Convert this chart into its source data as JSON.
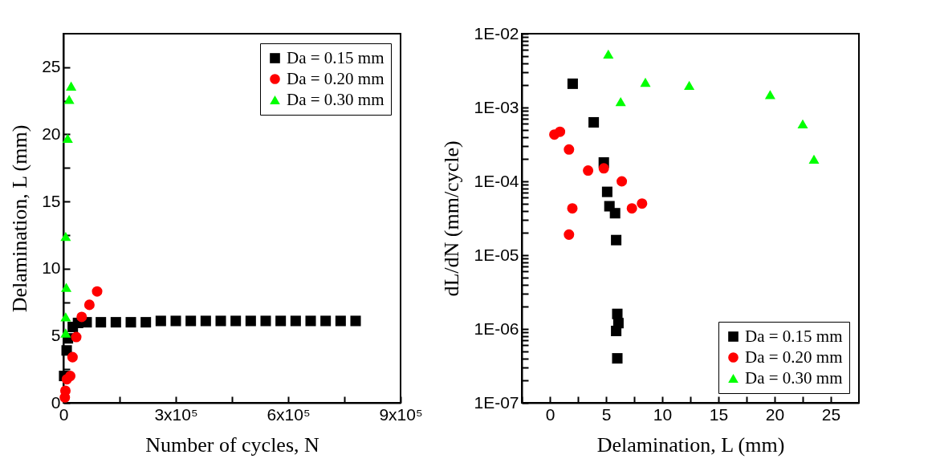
{
  "chart_data": [
    {
      "type": "scatter",
      "xlabel": "Number of cycles, N",
      "ylabel": "Delamination, L (mm)",
      "xlim": [
        0,
        900000
      ],
      "ylim": [
        0,
        27.5
      ],
      "xticks": [
        0,
        {
          "value": 150000,
          "label": null
        },
        {
          "value": 300000,
          "label": "3x10⁵"
        },
        {
          "value": 450000,
          "label": null
        },
        {
          "value": 600000,
          "label": "6x10⁵"
        },
        {
          "value": 750000,
          "label": null
        },
        {
          "value": 900000,
          "label": "9x10⁵"
        }
      ],
      "yticks": [
        0,
        {
          "value": 2.5,
          "label": null
        },
        5,
        {
          "value": 7.5,
          "label": null
        },
        10,
        {
          "value": 12.5,
          "label": null
        },
        15,
        {
          "value": 17.5,
          "label": null
        },
        20,
        {
          "value": 22.5,
          "label": null
        },
        25
      ],
      "legend": "top right",
      "grid": false,
      "series": [
        {
          "name": "Da = 0.15 mm",
          "color": "#000000",
          "marker": "square",
          "x": [
            2000,
            8700,
            12000,
            25000,
            39000,
            62000,
            100000,
            140000,
            180000,
            220000,
            260000,
            300000,
            340000,
            380000,
            420000,
            460000,
            500000,
            540000,
            580000,
            620000,
            660000,
            700000,
            740000,
            780000
          ],
          "values": [
            2.0,
            3.9,
            4.8,
            5.65,
            5.95,
            6.0,
            6.0,
            6.0,
            6.0,
            6.0,
            6.1,
            6.1,
            6.1,
            6.1,
            6.1,
            6.1,
            6.1,
            6.1,
            6.1,
            6.1,
            6.1,
            6.1,
            6.1,
            6.1
          ]
        },
        {
          "name": "Da = 0.20 mm",
          "color": "#ff0000",
          "marker": "circle",
          "x": [
            3800,
            5300,
            9200,
            18300,
            24400,
            34300,
            48800,
            69400,
            90000
          ],
          "values": [
            0.4,
            0.9,
            1.75,
            2.0,
            3.4,
            4.9,
            6.4,
            7.3,
            8.3
          ]
        },
        {
          "name": "Da = 0.30 mm",
          "color": "#00ff00",
          "marker": "triangle",
          "x": [
            6100,
            6100,
            7600,
            6100,
            11400,
            15300,
            20600
          ],
          "values": [
            5.2,
            6.4,
            8.6,
            12.4,
            19.7,
            22.6,
            23.6
          ]
        }
      ]
    },
    {
      "type": "scatter",
      "xlabel": "Delamination, L (mm)",
      "ylabel": "dL/dN (mm/cycle)",
      "log": "y",
      "xlim": [
        -2.5,
        27.5
      ],
      "ylim": [
        1e-07,
        0.01
      ],
      "xticks": [
        {
          "value": -2.5,
          "label": null
        },
        0,
        {
          "value": 2.5,
          "label": null
        },
        5,
        {
          "value": 7.5,
          "label": null
        },
        10,
        {
          "value": 12.5,
          "label": null
        },
        15,
        {
          "value": 17.5,
          "label": null
        },
        20,
        {
          "value": 22.5,
          "label": null
        },
        25
      ],
      "yticks": [
        {
          "value": 1e-07,
          "label": "1E-07"
        },
        {
          "value": 2e-07,
          "label": null
        },
        {
          "value": 3e-07,
          "label": null
        },
        {
          "value": 4e-07,
          "label": null
        },
        {
          "value": 5e-07,
          "label": null
        },
        {
          "value": 6e-07,
          "label": null
        },
        {
          "value": 7e-07,
          "label": null
        },
        {
          "value": 8e-07,
          "label": null
        },
        {
          "value": 9e-07,
          "label": null
        },
        {
          "value": 1e-06,
          "label": "1E-06"
        },
        {
          "value": 2e-06,
          "label": null
        },
        {
          "value": 3e-06,
          "label": null
        },
        {
          "value": 4e-06,
          "label": null
        },
        {
          "value": 5e-06,
          "label": null
        },
        {
          "value": 6e-06,
          "label": null
        },
        {
          "value": 7e-06,
          "label": null
        },
        {
          "value": 8e-06,
          "label": null
        },
        {
          "value": 9e-06,
          "label": null
        },
        {
          "value": 1e-05,
          "label": "1E-05"
        },
        {
          "value": 2e-05,
          "label": null
        },
        {
          "value": 3e-05,
          "label": null
        },
        {
          "value": 4e-05,
          "label": null
        },
        {
          "value": 5e-05,
          "label": null
        },
        {
          "value": 6e-05,
          "label": null
        },
        {
          "value": 7e-05,
          "label": null
        },
        {
          "value": 8e-05,
          "label": null
        },
        {
          "value": 9e-05,
          "label": null
        },
        {
          "value": 0.0001,
          "label": "1E-04"
        },
        {
          "value": 0.0002,
          "label": null
        },
        {
          "value": 0.0003,
          "label": null
        },
        {
          "value": 0.0004,
          "label": null
        },
        {
          "value": 0.0005,
          "label": null
        },
        {
          "value": 0.0006,
          "label": null
        },
        {
          "value": 0.0007,
          "label": null
        },
        {
          "value": 0.0008,
          "label": null
        },
        {
          "value": 0.0009,
          "label": null
        },
        {
          "value": 0.001,
          "label": "1E-03"
        },
        {
          "value": 0.002,
          "label": null
        },
        {
          "value": 0.003,
          "label": null
        },
        {
          "value": 0.004,
          "label": null
        },
        {
          "value": 0.005,
          "label": null
        },
        {
          "value": 0.006,
          "label": null
        },
        {
          "value": 0.007,
          "label": null
        },
        {
          "value": 0.008,
          "label": null
        },
        {
          "value": 0.009,
          "label": null
        },
        {
          "value": 0.01,
          "label": "1E-02"
        }
      ],
      "legend": "bottom right",
      "grid": false,
      "series": [
        {
          "name": "Da = 0.15 mm",
          "color": "#000000",
          "marker": "square",
          "x": [
            2.03,
            3.9,
            4.8,
            5.1,
            5.3,
            5.8,
            5.9,
            6.0,
            6.1,
            5.9,
            6.0
          ],
          "values": [
            0.0021,
            0.00063,
            0.00018,
            7.2e-05,
            4.6e-05,
            3.7e-05,
            1.6e-05,
            1.6e-06,
            1.2e-06,
            9.4e-07,
            4e-07
          ]
        },
        {
          "name": "Da = 0.20 mm",
          "color": "#ff0000",
          "marker": "circle",
          "x": [
            0.4,
            0.9,
            1.7,
            3.4,
            4.8,
            6.4,
            2.0,
            1.7,
            7.3,
            8.2
          ],
          "values": [
            0.00043,
            0.00047,
            0.00027,
            0.00014,
            0.00015,
            0.0001,
            4.3e-05,
            1.9e-05,
            4.3e-05,
            5e-05
          ]
        },
        {
          "name": "Da = 0.30 mm",
          "color": "#00ff00",
          "marker": "triangle",
          "x": [
            5.2,
            6.3,
            8.5,
            12.4,
            19.6,
            22.5,
            23.5
          ],
          "values": [
            0.0053,
            0.0012,
            0.0022,
            0.002,
            0.0015,
            0.0006,
            0.0002
          ]
        }
      ]
    }
  ]
}
